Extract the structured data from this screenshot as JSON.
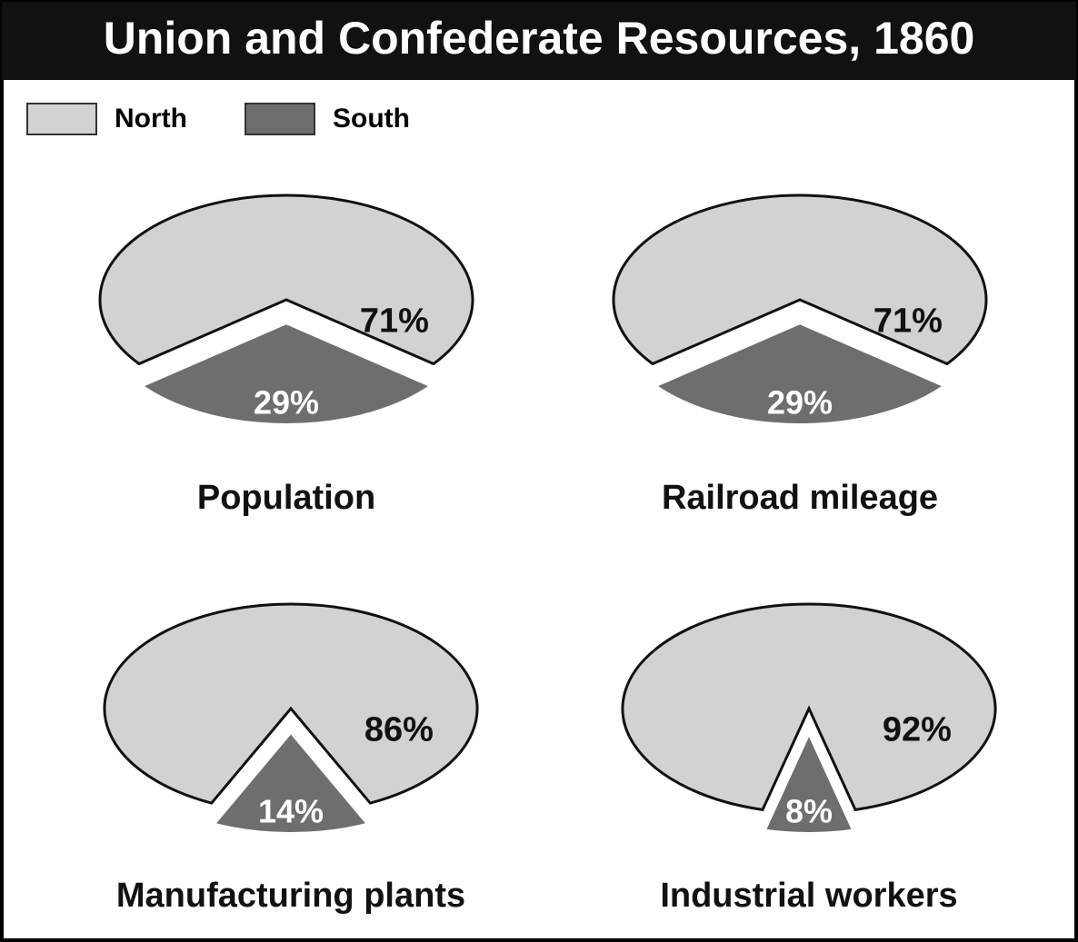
{
  "title": "Union and Confederate Resources, 1860",
  "legend": {
    "labels": [
      "North",
      "South"
    ],
    "colors": [
      "#d2d2d2",
      "#6e6e6e"
    ]
  },
  "chart_data": [
    {
      "type": "pie",
      "title": "Population",
      "values": [
        71,
        29
      ],
      "value_labels": [
        "71%",
        "29%"
      ]
    },
    {
      "type": "pie",
      "title": "Railroad mileage",
      "values": [
        71,
        29
      ],
      "value_labels": [
        "71%",
        "29%"
      ]
    },
    {
      "type": "pie",
      "title": "Manufacturing plants",
      "values": [
        86,
        14
      ],
      "value_labels": [
        "86%",
        "14%"
      ]
    },
    {
      "type": "pie",
      "title": "Industrial workers",
      "values": [
        92,
        8
      ],
      "value_labels": [
        "92%",
        "8%"
      ]
    }
  ]
}
